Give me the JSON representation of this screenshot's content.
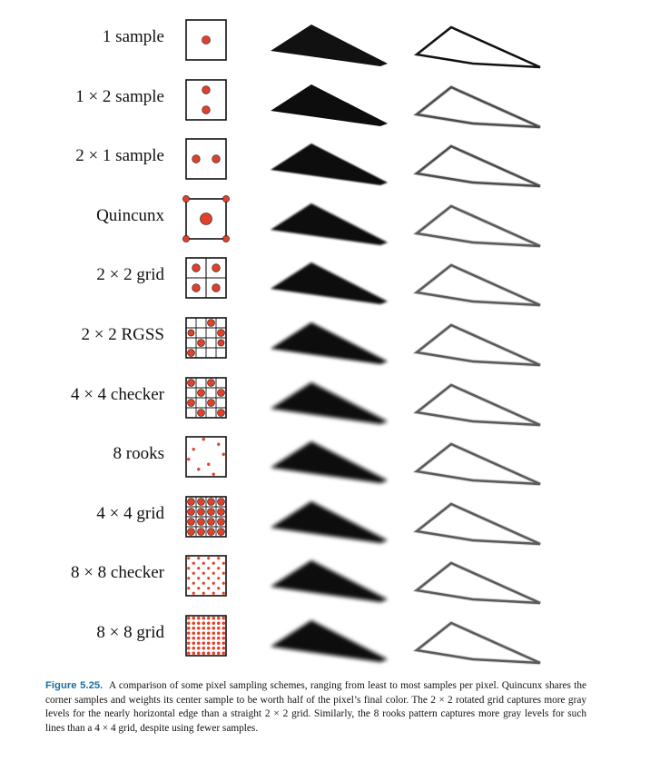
{
  "figure": {
    "rows": [
      {
        "label": "1 sample",
        "pattern": "one"
      },
      {
        "label": "1 × 2  sample",
        "pattern": "one-by-two"
      },
      {
        "label": "2 × 1 sample",
        "pattern": "two-by-one"
      },
      {
        "label": "Quincunx",
        "pattern": "quincunx"
      },
      {
        "label": "2 × 2 grid",
        "pattern": "grid-2x2"
      },
      {
        "label": "2 × 2 RGSS",
        "pattern": "rgss"
      },
      {
        "label": "4 × 4 checker",
        "pattern": "checker-4x4"
      },
      {
        "label": "8 rooks",
        "pattern": "rooks-8"
      },
      {
        "label": "4 × 4 grid",
        "pattern": "grid-4x4"
      },
      {
        "label": "8 × 8 checker",
        "pattern": "checker-8x8"
      },
      {
        "label": "8 × 8 grid",
        "pattern": "grid-8x8"
      }
    ],
    "colors": {
      "sample": "#e0412b",
      "ink": "#111111",
      "caption_label": "#1b6ea0"
    }
  },
  "caption": {
    "label": "Figure 5.25.",
    "text": "A comparison of some pixel sampling schemes, ranging from least to most samples per pixel. Quincunx shares the corner samples and weights its center sample to be worth half of the pixel’s final color. The 2 × 2 rotated grid captures more gray levels for the nearly horizontal edge than a straight 2 × 2 grid. Similarly, the 8 rooks pattern captures more gray levels for such lines than a 4 × 4 grid, despite using fewer samples."
  }
}
